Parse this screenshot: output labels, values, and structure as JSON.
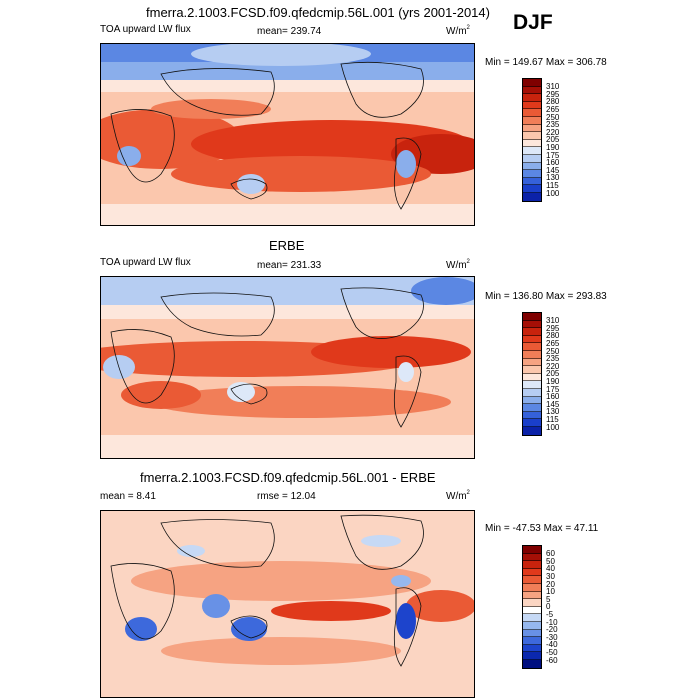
{
  "season": "DJF",
  "panels": [
    {
      "title": "fmerra.2.1003.FCSD.f09.qfedcmip.56L.001 (yrs 2001-2014)",
      "left_label": "TOA upward LW flux",
      "center_label": "mean= 239.74",
      "units": "W/m",
      "units_sup": "2",
      "minmax": "Min = 149.67 Max = 306.78",
      "colorbar_labels": [
        "310",
        "295",
        "280",
        "265",
        "250",
        "235",
        "220",
        "205",
        "190",
        "175",
        "160",
        "145",
        "130",
        "115",
        "100"
      ],
      "colorbar_colors": [
        "#7f0000",
        "#a50f06",
        "#c8230d",
        "#e0391b",
        "#ea5a35",
        "#f17e58",
        "#f6a382",
        "#fbc7ad",
        "#fde7dc",
        "#dde8f8",
        "#b6cdf2",
        "#8aaeeb",
        "#5b87e3",
        "#3561da",
        "#1a3fca",
        "#0b22a8"
      ]
    },
    {
      "title": "ERBE",
      "left_label": "TOA upward LW flux",
      "center_label": "mean= 231.33",
      "units": "W/m",
      "units_sup": "2",
      "minmax": "Min = 136.80 Max = 293.83",
      "colorbar_labels": [
        "310",
        "295",
        "280",
        "265",
        "250",
        "235",
        "220",
        "205",
        "190",
        "175",
        "160",
        "145",
        "130",
        "115",
        "100"
      ],
      "colorbar_colors": [
        "#7f0000",
        "#a50f06",
        "#c8230d",
        "#e0391b",
        "#ea5a35",
        "#f17e58",
        "#f6a382",
        "#fbc7ad",
        "#fde7dc",
        "#dde8f8",
        "#b6cdf2",
        "#8aaeeb",
        "#5b87e3",
        "#3561da",
        "#1a3fca",
        "#0b22a8"
      ]
    },
    {
      "title": "fmerra.2.1003.FCSD.f09.qfedcmip.56L.001 - ERBE",
      "left_label": "mean =  8.41",
      "center_label": "rmse =  12.04",
      "units": "W/m",
      "units_sup": "2",
      "minmax": "Min = -47.53 Max =  47.11",
      "colorbar_labels": [
        "60",
        "50",
        "40",
        "30",
        "20",
        "10",
        "5",
        "0",
        "-5",
        "-10",
        "-20",
        "-30",
        "-40",
        "-50",
        "-60"
      ],
      "colorbar_colors": [
        "#7f0000",
        "#a50f06",
        "#c8230d",
        "#e0391b",
        "#ea5a35",
        "#f17e58",
        "#f6a382",
        "#fbd5c2",
        "#ffffff",
        "#c6d9f5",
        "#96b8ee",
        "#6891e6",
        "#3d69dc",
        "#1d44cc",
        "#0b28ae",
        "#000f80"
      ]
    }
  ],
  "theme": {
    "ocean_warm": "#e95434",
    "ocean_mid": "#f5a283",
    "ocean_cool": "#fde3d6",
    "polar": "#6f94e4",
    "polar_light": "#b6cdf2",
    "diff_base": "#f8c3aa",
    "diff_blue": "#3f6fdc"
  }
}
